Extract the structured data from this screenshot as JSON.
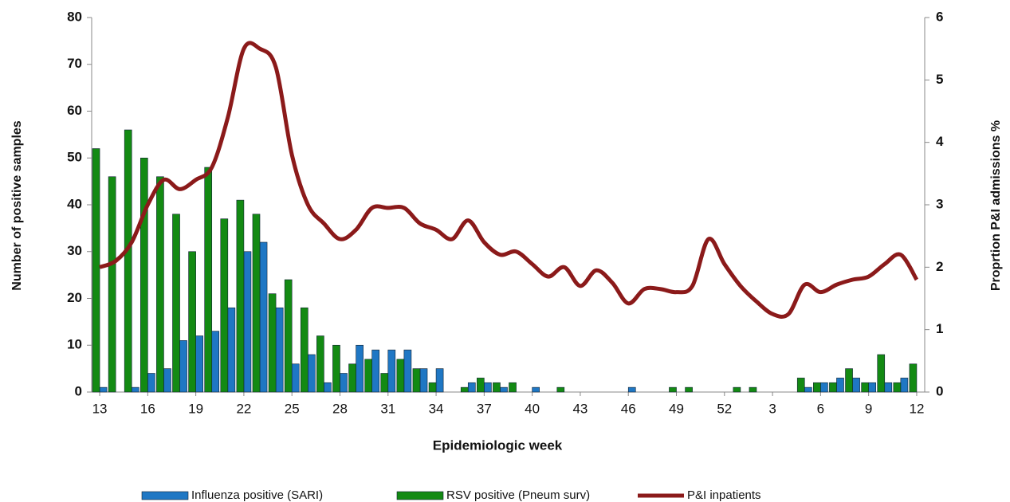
{
  "chart_data": {
    "type": "bar-line",
    "x_label": "Epidemiologic week",
    "y_label": "Number of positive samples",
    "y2_label": "Proprtion P&I admissions %",
    "categories": [
      "13",
      null,
      null,
      "16",
      null,
      null,
      "19",
      null,
      null,
      "22",
      null,
      null,
      "25",
      null,
      null,
      "28",
      null,
      null,
      "31",
      null,
      null,
      "34",
      null,
      null,
      "37",
      null,
      null,
      "40",
      null,
      null,
      "43",
      null,
      null,
      "46",
      null,
      null,
      "49",
      null,
      null,
      "52",
      null,
      null,
      "3",
      null,
      null,
      "6",
      null,
      null,
      "9",
      null,
      null,
      "12"
    ],
    "series": [
      {
        "name": "Influenza positive (SARI)",
        "color": "#1f77c4",
        "kind": "bar",
        "values": [
          1,
          0,
          1,
          4,
          5,
          11,
          12,
          13,
          18,
          30,
          32,
          18,
          6,
          8,
          2,
          4,
          10,
          9,
          9,
          9,
          5,
          5,
          0,
          2,
          2,
          1,
          0,
          1,
          0,
          0,
          0,
          0,
          0,
          1,
          0,
          0,
          0,
          0,
          0,
          0,
          0,
          0,
          0,
          0,
          1,
          2,
          3,
          3,
          2,
          2,
          3,
          0
        ]
      },
      {
        "name": "RSV positive (Pneum surv)",
        "color": "#138a13",
        "kind": "bar",
        "values": [
          52,
          46,
          56,
          50,
          46,
          38,
          30,
          48,
          37,
          41,
          38,
          21,
          24,
          18,
          12,
          10,
          6,
          7,
          4,
          7,
          5,
          2,
          0,
          1,
          3,
          2,
          2,
          0,
          0,
          1,
          0,
          0,
          0,
          0,
          0,
          0,
          1,
          1,
          0,
          0,
          1,
          1,
          0,
          0,
          3,
          2,
          2,
          5,
          2,
          8,
          2,
          6
        ]
      },
      {
        "name": "P&I inpatients",
        "color": "#8b1a1a",
        "kind": "line",
        "axis": "y2",
        "values": [
          2.0,
          2.1,
          2.4,
          3.0,
          3.4,
          3.25,
          3.4,
          3.6,
          4.4,
          5.5,
          5.5,
          5.2,
          3.8,
          3.0,
          2.7,
          2.45,
          2.6,
          2.95,
          2.95,
          2.95,
          2.7,
          2.6,
          2.45,
          2.75,
          2.4,
          2.2,
          2.25,
          2.05,
          1.85,
          2.0,
          1.7,
          1.95,
          1.75,
          1.42,
          1.65,
          1.65,
          1.6,
          1.7,
          2.45,
          2.05,
          1.7,
          1.45,
          1.25,
          1.25,
          1.72,
          1.6,
          1.72,
          1.8,
          1.85,
          2.05,
          2.2,
          1.8
        ]
      }
    ],
    "ylim": [
      0,
      80
    ],
    "yticks": [
      0,
      10,
      20,
      30,
      40,
      50,
      60,
      70,
      80
    ],
    "y2lim": [
      0,
      6
    ],
    "y2ticks": [
      0,
      1,
      2,
      3,
      4,
      5,
      6
    ],
    "legend": "bottom"
  }
}
